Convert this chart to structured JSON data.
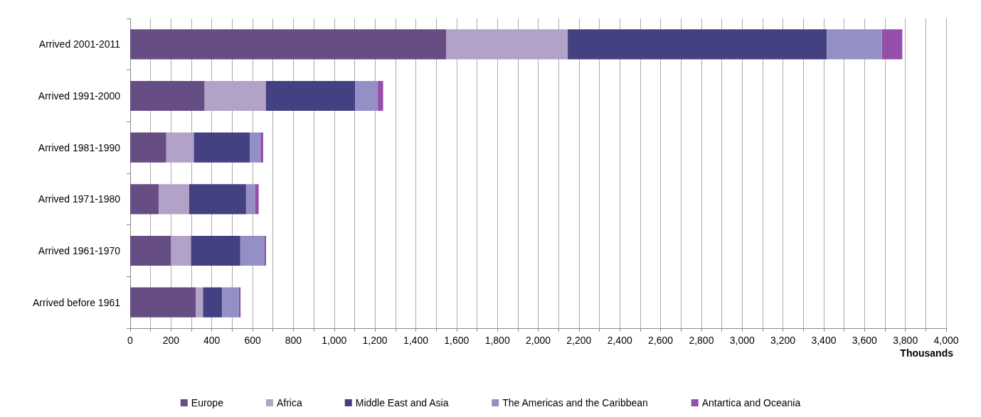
{
  "chart_data": {
    "type": "bar",
    "orientation": "horizontal",
    "stacked": true,
    "xlabel": "Thousands",
    "categories": [
      "Arrived 2001-2011",
      "Arrived 1991-2000",
      "Arrived 1981-1990",
      "Arrived 1971-1980",
      "Arrived 1961-1970",
      "Arrived before 1961"
    ],
    "series": [
      {
        "name": "Europe",
        "color": "#664d83",
        "values": [
          1550,
          365,
          177,
          141,
          200,
          321
        ]
      },
      {
        "name": "Africa",
        "color": "#b3a2c7",
        "values": [
          595,
          300,
          135,
          148,
          98,
          36
        ]
      },
      {
        "name": "Middle East and Asia",
        "color": "#434182",
        "values": [
          1270,
          437,
          274,
          279,
          242,
          94
        ]
      },
      {
        "name": "The Americas and the Caribbean",
        "color": "#9490c6",
        "values": [
          270,
          112,
          53,
          44,
          119,
          82
        ]
      },
      {
        "name": "Antartica and Oceania",
        "color": "#954eaa",
        "values": [
          100,
          26,
          13,
          18,
          7,
          8
        ]
      }
    ],
    "xlim": [
      0,
      4000
    ],
    "xticks": [
      0,
      {
        "value": 100,
        "label": null
      },
      200,
      {
        "value": 300,
        "label": null
      },
      400,
      {
        "value": 500,
        "label": null
      },
      600,
      {
        "value": 700,
        "label": null
      },
      800,
      {
        "value": 900,
        "label": null
      },
      {
        "value": 1000,
        "label": "1,000"
      },
      {
        "value": 1100,
        "label": null
      },
      {
        "value": 1200,
        "label": "1,200"
      },
      {
        "value": 1300,
        "label": null
      },
      {
        "value": 1400,
        "label": "1,400"
      },
      {
        "value": 1500,
        "label": null
      },
      {
        "value": 1600,
        "label": "1,600"
      },
      {
        "value": 1700,
        "label": null
      },
      {
        "value": 1800,
        "label": "1,800"
      },
      {
        "value": 1900,
        "label": null
      },
      {
        "value": 2000,
        "label": "2,000"
      },
      {
        "value": 2100,
        "label": null
      },
      {
        "value": 2200,
        "label": "2,200"
      },
      {
        "value": 2300,
        "label": null
      },
      {
        "value": 2400,
        "label": "2,400"
      },
      {
        "value": 2500,
        "label": null
      },
      {
        "value": 2600,
        "label": "2,600"
      },
      {
        "value": 2700,
        "label": null
      },
      {
        "value": 2800,
        "label": "2,800"
      },
      {
        "value": 2900,
        "label": null
      },
      {
        "value": 3000,
        "label": "3,000"
      },
      {
        "value": 3100,
        "label": null
      },
      {
        "value": 3200,
        "label": "3,200"
      },
      {
        "value": 3300,
        "label": null
      },
      {
        "value": 3400,
        "label": "3,400"
      },
      {
        "value": 3500,
        "label": null
      },
      {
        "value": 3600,
        "label": "3,600"
      },
      {
        "value": 3700,
        "label": null
      },
      {
        "value": 3800,
        "label": "3,800"
      },
      {
        "value": 3900,
        "label": null
      },
      {
        "value": 4000,
        "label": "4,000"
      }
    ],
    "grid": "x",
    "legend": "bottom"
  }
}
